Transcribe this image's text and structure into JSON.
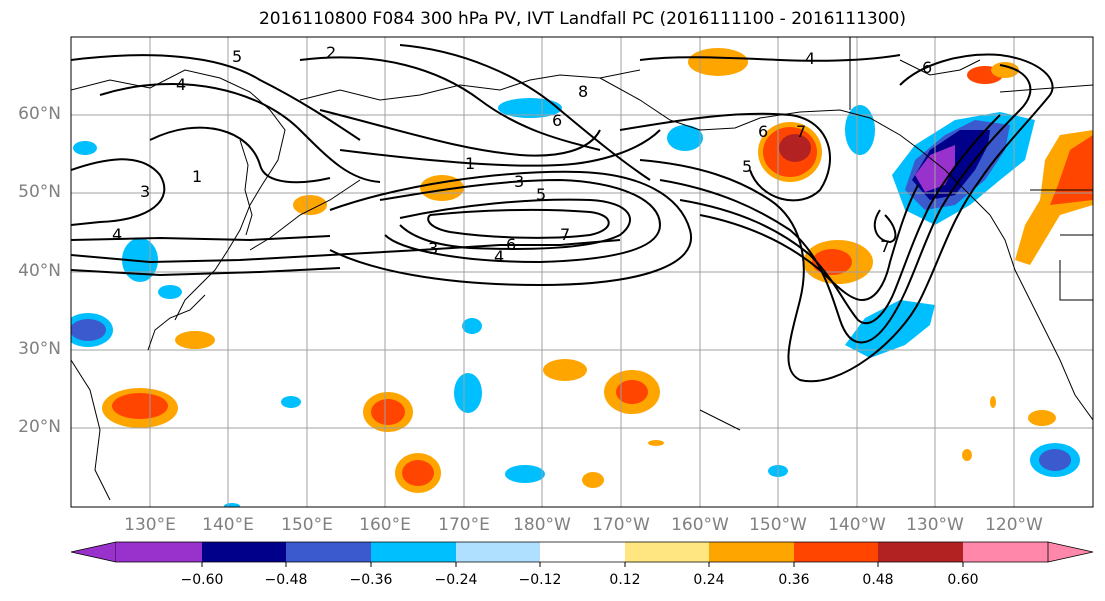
{
  "title": "2016110800 F084 300 hPa PV, IVT Landfall PC (2016111100 - 2016111300)",
  "lat_labels": [
    "60°N",
    "50°N",
    "40°N",
    "30°N",
    "20°N"
  ],
  "lon_labels": [
    "130°E",
    "140°E",
    "150°E",
    "160°E",
    "170°E",
    "180°W",
    "170°W",
    "160°W",
    "150°W",
    "140°W",
    "130°W",
    "120°W"
  ],
  "colorbar": {
    "colors": [
      "#9932cc",
      "#00008b",
      "#3a5acd",
      "#00bfff",
      "#b0e0ff",
      "#ffffff",
      "#ffe680",
      "#ffa500",
      "#ff4500",
      "#b22222",
      "#ff88aa"
    ],
    "tick_labels": [
      "−0.60",
      "−0.48",
      "−0.36",
      "−0.24",
      "−0.12",
      "0.12",
      "0.24",
      "0.36",
      "0.48",
      "0.60"
    ]
  },
  "contour_labels": [
    "5",
    "2",
    "4",
    "1",
    "3",
    "4",
    "8",
    "6",
    "1",
    "3",
    "5",
    "3",
    "6",
    "4",
    "7",
    "7",
    "5",
    "6",
    "4",
    "6",
    "7"
  ],
  "colors": {
    "coast": "#000000",
    "grid": "#a0a0a0",
    "contour": "#000000"
  }
}
